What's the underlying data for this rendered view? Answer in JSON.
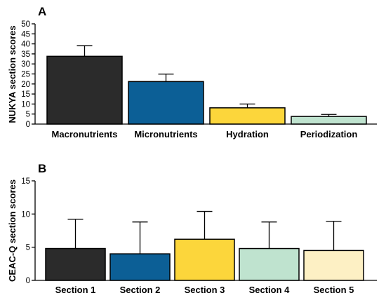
{
  "chart_data": [
    {
      "type": "bar",
      "panel": "A",
      "title": "",
      "xlabel": "",
      "ylabel": "NUKYA section scores",
      "ylim": [
        0,
        50
      ],
      "yticks": [
        0,
        5,
        10,
        15,
        20,
        25,
        30,
        35,
        40,
        45,
        50
      ],
      "grid": false,
      "categories": [
        "Macronutrients",
        "Micronutrients",
        "Hydration",
        "Periodization"
      ],
      "values": [
        33.8,
        21.2,
        8.1,
        3.8
      ],
      "errors": [
        5.3,
        3.7,
        1.9,
        1.0
      ],
      "colors": [
        "#2b2b2b",
        "#0c5f96",
        "#fcd63b",
        "#bfe3cf"
      ]
    },
    {
      "type": "bar",
      "panel": "B",
      "title": "",
      "xlabel": "",
      "ylabel": "CEAC-Q section scores",
      "ylim": [
        0,
        15
      ],
      "yticks": [
        0,
        5,
        10,
        15
      ],
      "grid": false,
      "categories": [
        "Section 1",
        "Section 2",
        "Section 3",
        "Section 4",
        "Section 5"
      ],
      "values": [
        4.8,
        4.0,
        6.2,
        4.8,
        4.5
      ],
      "errors": [
        4.4,
        4.8,
        4.2,
        4.0,
        4.4
      ],
      "colors": [
        "#2b2b2b",
        "#0c5f96",
        "#fcd63b",
        "#bfe3cf",
        "#fdf0c4"
      ]
    }
  ]
}
